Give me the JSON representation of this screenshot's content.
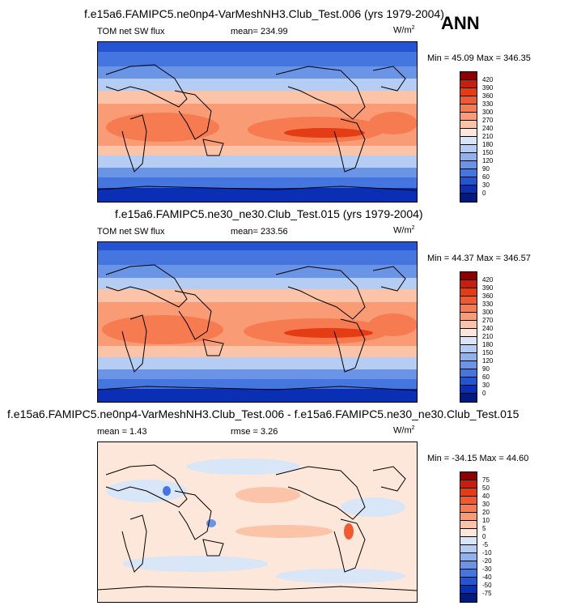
{
  "season": "ANN",
  "panels": [
    {
      "title": "f.e15a6.FAMIPC5.ne0np4-VarMeshNH3.Club_Test.006 (yrs 1979-2004)",
      "left_label": "TOM net SW flux",
      "center_label": "mean= 234.99",
      "units": "W/m",
      "units_sup": "2",
      "min_max": "Min = 45.09 Max = 346.35",
      "colorbar_labels": [
        "420",
        "390",
        "360",
        "330",
        "300",
        "270",
        "240",
        "210",
        "180",
        "150",
        "120",
        "90",
        "60",
        "30",
        "0"
      ],
      "colorbar_colors": [
        "#8b0000",
        "#c81e0f",
        "#e43c14",
        "#f05a32",
        "#f67b50",
        "#f99b75",
        "#fbc3a8",
        "#fde6da",
        "#d9e6f7",
        "#b5cdf2",
        "#8fb1ec",
        "#6a94e6",
        "#4575de",
        "#2554d2",
        "#0a2fb4",
        "#001a80"
      ],
      "map_colors": {
        "polar": "#2554d2",
        "mid": "#6a94e6",
        "sub": "#b5cdf2",
        "warm": "#fbc3a8",
        "tropic": "#f67b50",
        "core": "#e43c14"
      }
    },
    {
      "title": "f.e15a6.FAMIPC5.ne30_ne30.Club_Test.015 (yrs 1979-2004)",
      "left_label": "TOM net SW flux",
      "center_label": "mean= 233.56",
      "units": "W/m",
      "units_sup": "2",
      "min_max": "Min = 44.37 Max = 346.57",
      "colorbar_labels": [
        "420",
        "390",
        "360",
        "330",
        "300",
        "270",
        "240",
        "210",
        "180",
        "150",
        "120",
        "90",
        "60",
        "30",
        "0"
      ],
      "colorbar_colors": [
        "#8b0000",
        "#c81e0f",
        "#e43c14",
        "#f05a32",
        "#f67b50",
        "#f99b75",
        "#fbc3a8",
        "#fde6da",
        "#d9e6f7",
        "#b5cdf2",
        "#8fb1ec",
        "#6a94e6",
        "#4575de",
        "#2554d2",
        "#0a2fb4",
        "#001a80"
      ],
      "map_colors": {
        "polar": "#2554d2",
        "mid": "#6a94e6",
        "sub": "#b5cdf2",
        "warm": "#fbc3a8",
        "tropic": "#f67b50",
        "core": "#e43c14"
      }
    },
    {
      "title": "f.e15a6.FAMIPC5.ne0np4-VarMeshNH3.Club_Test.006 - f.e15a6.FAMIPC5.ne30_ne30.Club_Test.015",
      "left_label": "mean = 1.43",
      "center_label": "rmse = 3.26",
      "units": "W/m",
      "units_sup": "2",
      "min_max": "Min = -34.15 Max = 44.60",
      "colorbar_labels": [
        "75",
        "50",
        "40",
        "30",
        "20",
        "10",
        "5",
        "0",
        "-5",
        "-10",
        "-20",
        "-30",
        "-40",
        "-50",
        "-75"
      ],
      "colorbar_colors": [
        "#8b0000",
        "#c81e0f",
        "#e43c14",
        "#f05a32",
        "#f67b50",
        "#f99b75",
        "#fbc3a8",
        "#fde6da",
        "#d9e6f7",
        "#b5cdf2",
        "#8fb1ec",
        "#6a94e6",
        "#4575de",
        "#2554d2",
        "#0a2fb4",
        "#001a80"
      ],
      "map_colors": {
        "base": "#fde6da",
        "cool": "#d9e6f7",
        "warm": "#fbc3a8",
        "hot": "#f05a32",
        "cold": "#4575de"
      }
    }
  ]
}
